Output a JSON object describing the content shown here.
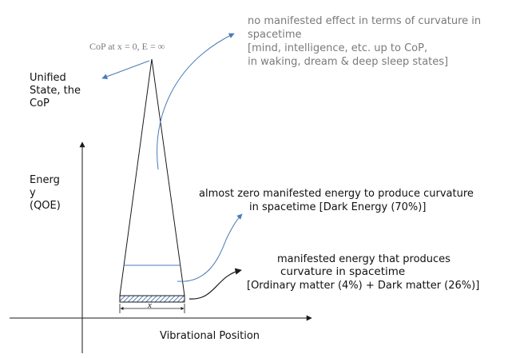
{
  "colors": {
    "line": "#1a1a1a",
    "arrow_blue": "#4a7ab8",
    "gray_text": "#7a7a7a",
    "dark_text": "#111111",
    "hatch_fill": "#5a7fb0"
  },
  "labels": {
    "cop_point": "CoP at x = 0,  E = ∞",
    "unified_line1": "Unified",
    "unified_line2": "State, the",
    "unified_line3": "CoP",
    "energy_line1": "Energ",
    "energy_line2": "y",
    "energy_line3": "(QOE)",
    "x_axis": "Vibrational Position",
    "x_width": "x"
  },
  "annotations": {
    "top_line1": "no manifested effect in terms of curvature in",
    "top_line2": "spacetime",
    "top_line3": "[mind, intelligence, etc. up to CoP,",
    "top_line4": " in waking, dream & deep sleep states]",
    "middle_line1": "almost zero manifested energy to produce curvature",
    "middle_line2": "in spacetime [Dark Energy (70%)]",
    "bottom_line1": "manifested energy that produces",
    "bottom_line2": "curvature in spacetime",
    "bottom_line3": "[Ordinary matter (4%) + Dark matter (26%)]"
  }
}
